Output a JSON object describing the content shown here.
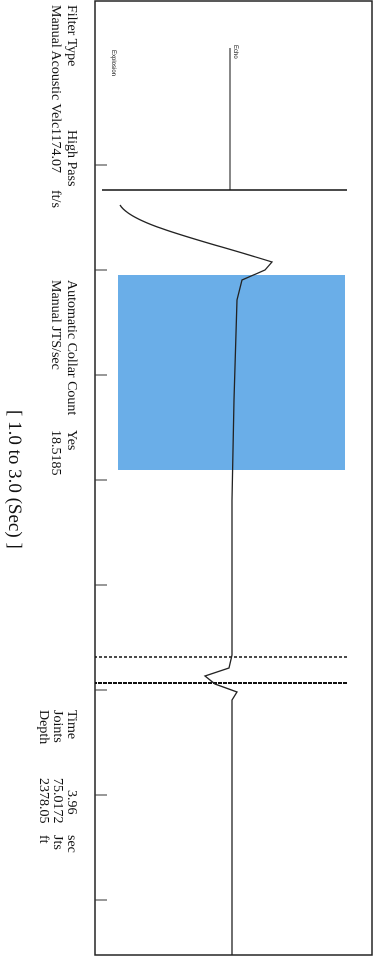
{
  "labels": {
    "filter_type": {
      "name": "Filter Type",
      "value": "High Pass"
    },
    "velocity": {
      "name": "Manual Acoustic Velc",
      "value": "1174.07",
      "unit": "ft/s"
    },
    "collar": {
      "name": "Automatic Collar Count",
      "value": "Yes"
    },
    "jts": {
      "name": "Manual JTS/sec",
      "value": "18.5185"
    },
    "time": {
      "name": "Time",
      "value": "3.96",
      "unit": "sec"
    },
    "joints": {
      "name": "Joints",
      "value": "75.0172",
      "unit": "Jts"
    },
    "depth": {
      "name": "Depth",
      "value": "2378.05",
      "unit": "ft"
    }
  },
  "plot": {
    "explosion": "Explosion",
    "echo": "Echo"
  },
  "caption": "[ 1.0 to 3.0 (Sec) ]"
}
